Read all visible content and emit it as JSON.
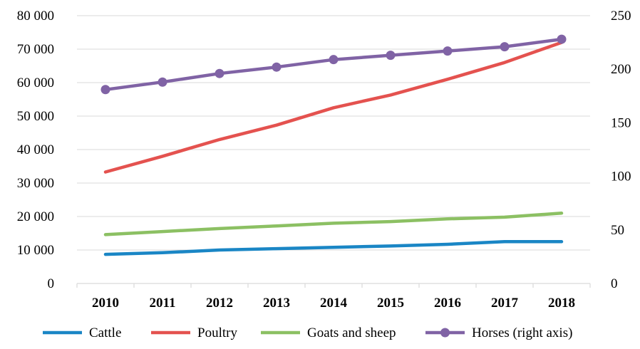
{
  "chart_data": {
    "type": "line",
    "categories": [
      "2010",
      "2011",
      "2012",
      "2013",
      "2014",
      "2015",
      "2016",
      "2017",
      "2018"
    ],
    "series": [
      {
        "name": "Cattle",
        "axis": "left",
        "color": "#1a86c5",
        "values": [
          8700,
          9200,
          10000,
          10400,
          10800,
          11200,
          11700,
          12500,
          12500
        ]
      },
      {
        "name": "Poultry",
        "axis": "left",
        "color": "#e4524f",
        "values": [
          33300,
          38000,
          43000,
          47300,
          52500,
          56300,
          61000,
          66000,
          72000
        ]
      },
      {
        "name": "Goats and sheep",
        "axis": "left",
        "color": "#8cc063",
        "values": [
          14600,
          15500,
          16400,
          17200,
          18000,
          18500,
          19300,
          19800,
          21000
        ]
      },
      {
        "name": "Horses (right axis)",
        "axis": "right",
        "color": "#8063a5",
        "markers": true,
        "values": [
          181,
          188,
          196,
          202,
          209,
          213,
          217,
          221,
          228
        ]
      }
    ],
    "y_left": {
      "min": 0,
      "max": 80000,
      "step": 10000,
      "tick_labels": [
        "0",
        "10 000",
        "20 000",
        "30 000",
        "40 000",
        "50 000",
        "60 000",
        "70 000",
        "80 000"
      ]
    },
    "y_right": {
      "min": 0,
      "max": 250,
      "step": 50,
      "tick_labels": [
        "0",
        "50",
        "100",
        "150",
        "200",
        "250"
      ]
    },
    "grid": "horizontal",
    "grid_color": "#d9d9d9",
    "legend_position": "bottom"
  }
}
